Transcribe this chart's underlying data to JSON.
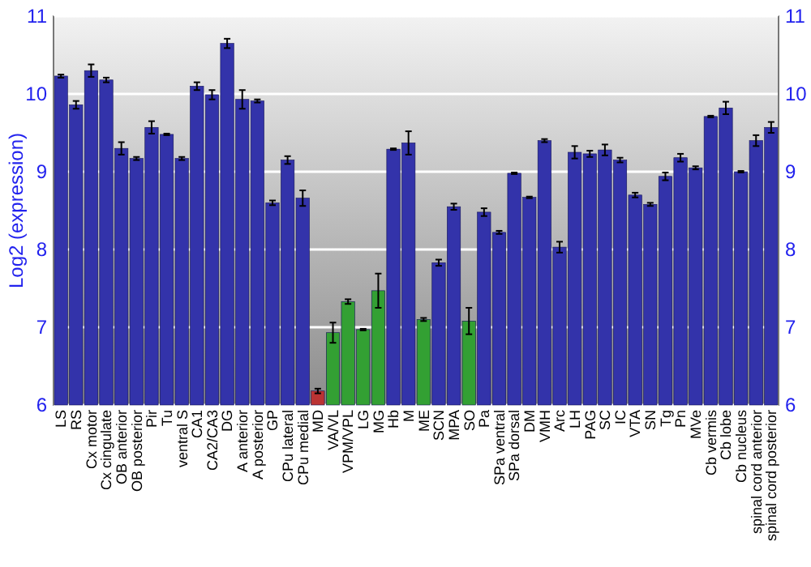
{
  "chart_data": {
    "type": "bar",
    "ylabel": "Log2 (expression)",
    "categories": [
      "LS",
      "RS",
      "Cx motor",
      "Cx cingulate",
      "OB anterior",
      "OB posterior",
      "Pir",
      "Tu",
      "ventral S",
      "CA1",
      "CA2/CA3",
      "DG",
      "A anterior",
      "A posterior",
      "GP",
      "CPu lateral",
      "CPu medial",
      "MD",
      "VA/VL",
      "VPM/VPL",
      "LG",
      "MG",
      "Hb",
      "M",
      "ME",
      "SCN",
      "MPA",
      "SO",
      "Pa",
      "SPa ventral",
      "SPa dorsal",
      "DM",
      "VMH",
      "Arc",
      "LH",
      "PAG",
      "SC",
      "IC",
      "VTA",
      "SN",
      "Tg",
      "Pn",
      "MVe",
      "Cb vermis",
      "Cb lobe",
      "Cb nucleus",
      "spinal cord anterior",
      "spinal cord posterior"
    ],
    "values": [
      10.23,
      9.86,
      10.3,
      10.18,
      9.3,
      9.17,
      9.57,
      9.48,
      9.17,
      10.1,
      9.99,
      10.65,
      9.93,
      9.91,
      8.6,
      9.15,
      8.66,
      6.18,
      6.93,
      7.33,
      6.97,
      7.47,
      9.29,
      9.37,
      7.1,
      7.83,
      8.55,
      7.08,
      8.48,
      8.22,
      8.98,
      8.67,
      9.4,
      8.03,
      9.25,
      9.23,
      9.28,
      9.15,
      8.7,
      8.58,
      8.94,
      9.18,
      9.05,
      9.71,
      9.82,
      9.0,
      9.4,
      9.57
    ],
    "errors": [
      0.02,
      0.05,
      0.08,
      0.03,
      0.08,
      0.02,
      0.08,
      0.01,
      0.02,
      0.05,
      0.06,
      0.06,
      0.12,
      0.02,
      0.03,
      0.05,
      0.1,
      0.03,
      0.13,
      0.03,
      0.01,
      0.22,
      0.01,
      0.15,
      0.02,
      0.04,
      0.04,
      0.17,
      0.05,
      0.02,
      0.01,
      0.01,
      0.02,
      0.07,
      0.08,
      0.04,
      0.07,
      0.03,
      0.03,
      0.02,
      0.05,
      0.05,
      0.02,
      0.01,
      0.08,
      0.01,
      0.07,
      0.07
    ],
    "colors": [
      "#3333aa",
      "#3333aa",
      "#3333aa",
      "#3333aa",
      "#3333aa",
      "#3333aa",
      "#3333aa",
      "#3333aa",
      "#3333aa",
      "#3333aa",
      "#3333aa",
      "#3333aa",
      "#3333aa",
      "#3333aa",
      "#3333aa",
      "#3333aa",
      "#3333aa",
      "#bb3333",
      "#33a033",
      "#33a033",
      "#33a033",
      "#33a033",
      "#3333aa",
      "#3333aa",
      "#33a033",
      "#3333aa",
      "#3333aa",
      "#33a033",
      "#3333aa",
      "#3333aa",
      "#3333aa",
      "#3333aa",
      "#3333aa",
      "#3333aa",
      "#3333aa",
      "#3333aa",
      "#3333aa",
      "#3333aa",
      "#3333aa",
      "#3333aa",
      "#3333aa",
      "#3333aa",
      "#3333aa",
      "#3333aa",
      "#3333aa",
      "#3333aa",
      "#3333aa",
      "#3333aa"
    ],
    "ylim": [
      6,
      11
    ],
    "yticks": [
      6,
      7,
      8,
      9,
      10,
      11
    ],
    "y2lim": [
      6,
      11
    ],
    "y2ticks": [
      6,
      7,
      8,
      9,
      10,
      11
    ],
    "grid": "y"
  }
}
